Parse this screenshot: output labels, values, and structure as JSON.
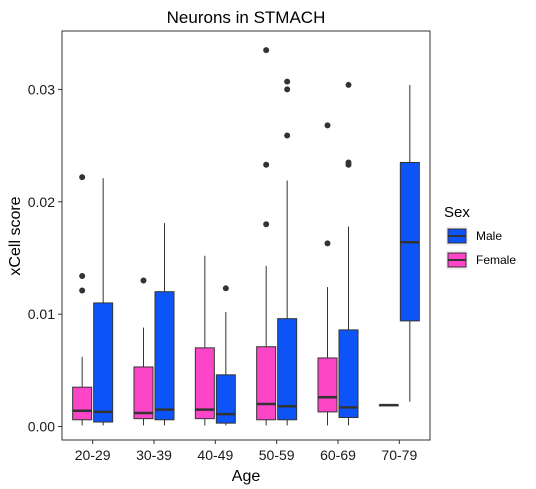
{
  "chart_data": {
    "type": "boxplot",
    "title": "Neurons in STMACH",
    "xlabel": "Age",
    "ylabel": "xCell score",
    "categories": [
      "20-29",
      "30-39",
      "40-49",
      "50-59",
      "60-69",
      "70-79"
    ],
    "y_ticks": [
      0.0,
      0.01,
      0.02,
      0.03
    ],
    "y_tick_labels": [
      "0.00",
      "0.01",
      "0.02",
      "0.03"
    ],
    "ylim": [
      -0.0012,
      0.0352
    ],
    "grid": false,
    "legend": {
      "title": "Sex",
      "position": "right",
      "entries": [
        {
          "name": "Male",
          "color": "#0c54f8"
        },
        {
          "name": "Female",
          "color": "#fd45c8"
        }
      ]
    },
    "series": [
      {
        "name": "Female",
        "color": "#fd45c8",
        "boxes": [
          {
            "category": "20-29",
            "lower": 0.0001,
            "q1": 0.0006,
            "median": 0.0014,
            "q3": 0.0035,
            "upper": 0.0062,
            "outliers": [
              0.0222,
              0.0134,
              0.0121
            ]
          },
          {
            "category": "30-39",
            "lower": 0.0001,
            "q1": 0.0007,
            "median": 0.0012,
            "q3": 0.0053,
            "upper": 0.0088,
            "outliers": [
              0.013
            ]
          },
          {
            "category": "40-49",
            "lower": 0.0001,
            "q1": 0.0007,
            "median": 0.0015,
            "q3": 0.007,
            "upper": 0.0152,
            "outliers": []
          },
          {
            "category": "50-59",
            "lower": 0.0001,
            "q1": 0.0006,
            "median": 0.002,
            "q3": 0.0071,
            "upper": 0.0143,
            "outliers": [
              0.0335,
              0.0233,
              0.018
            ]
          },
          {
            "category": "60-69",
            "lower": 0.0001,
            "q1": 0.0013,
            "median": 0.0026,
            "q3": 0.0061,
            "upper": 0.0124,
            "outliers": [
              0.0268,
              0.0163
            ]
          },
          {
            "category": "70-79",
            "lower": 0.0019,
            "q1": 0.0019,
            "median": 0.0019,
            "q3": 0.0019,
            "upper": 0.0019,
            "outliers": []
          }
        ]
      },
      {
        "name": "Male",
        "color": "#0c54f8",
        "boxes": [
          {
            "category": "20-29",
            "lower": 0.0001,
            "q1": 0.0004,
            "median": 0.0013,
            "q3": 0.011,
            "upper": 0.0221,
            "outliers": []
          },
          {
            "category": "30-39",
            "lower": 0.0001,
            "q1": 0.0006,
            "median": 0.0015,
            "q3": 0.012,
            "upper": 0.0181,
            "outliers": []
          },
          {
            "category": "40-49",
            "lower": 0.0001,
            "q1": 0.0003,
            "median": 0.0011,
            "q3": 0.0046,
            "upper": 0.0102,
            "outliers": [
              0.0123
            ]
          },
          {
            "category": "50-59",
            "lower": 0.0001,
            "q1": 0.0006,
            "median": 0.0018,
            "q3": 0.0096,
            "upper": 0.0219,
            "outliers": [
              0.0307,
              0.03,
              0.0259
            ]
          },
          {
            "category": "60-69",
            "lower": 0.0001,
            "q1": 0.0008,
            "median": 0.0017,
            "q3": 0.0086,
            "upper": 0.0178,
            "outliers": [
              0.0304,
              0.0235,
              0.0233
            ]
          },
          {
            "category": "70-79",
            "lower": 0.0022,
            "q1": 0.0094,
            "median": 0.0164,
            "q3": 0.0235,
            "upper": 0.0304,
            "outliers": []
          }
        ]
      }
    ]
  }
}
